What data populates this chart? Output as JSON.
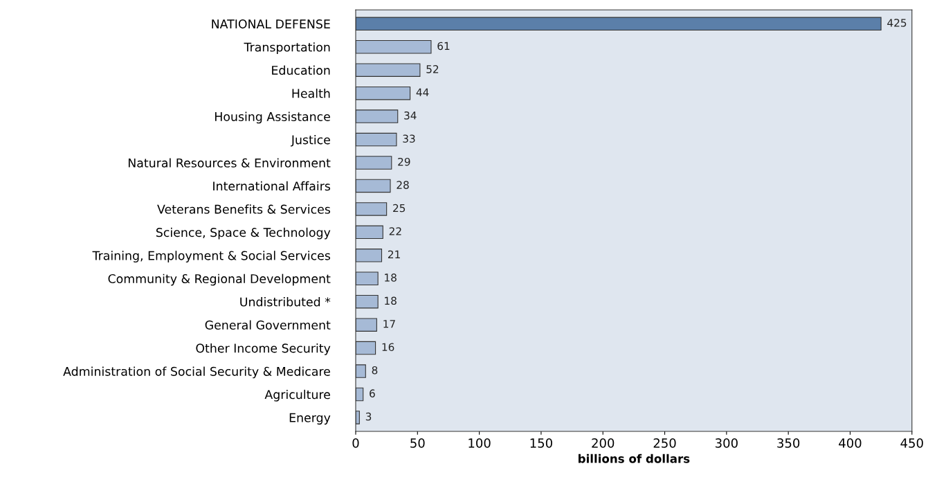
{
  "chart_data": {
    "type": "bar",
    "orientation": "horizontal",
    "xlabel": "billions of dollars",
    "categories": [
      "NATIONAL DEFENSE",
      "Transportation",
      "Education",
      "Health",
      "Housing Assistance",
      "Justice",
      "Natural Resources & Environment",
      "International Affairs",
      "Veterans Benefits & Services",
      "Science, Space & Technology",
      "Training, Employment & Social Services",
      "Community & Regional Development",
      "Undistributed *",
      "General Government",
      "Other Income Security",
      "Administration of Social Security & Medicare",
      "Agriculture",
      "Energy"
    ],
    "values": [
      425,
      61,
      52,
      44,
      34,
      33,
      29,
      28,
      25,
      22,
      21,
      18,
      18,
      17,
      16,
      8,
      6,
      3
    ],
    "colors": [
      "#5b7fa9",
      "#a6bad6",
      "#a6bad6",
      "#a6bad6",
      "#a6bad6",
      "#a6bad6",
      "#a6bad6",
      "#a6bad6",
      "#a6bad6",
      "#a6bad6",
      "#a6bad6",
      "#a6bad6",
      "#a6bad6",
      "#a6bad6",
      "#a6bad6",
      "#a6bad6",
      "#a6bad6",
      "#a6bad6"
    ],
    "xlim": [
      0,
      450
    ],
    "xticks": [
      0,
      50,
      100,
      150,
      200,
      250,
      300,
      350,
      400,
      450
    ],
    "data_labels": true,
    "grid": false,
    "legend": false
  }
}
